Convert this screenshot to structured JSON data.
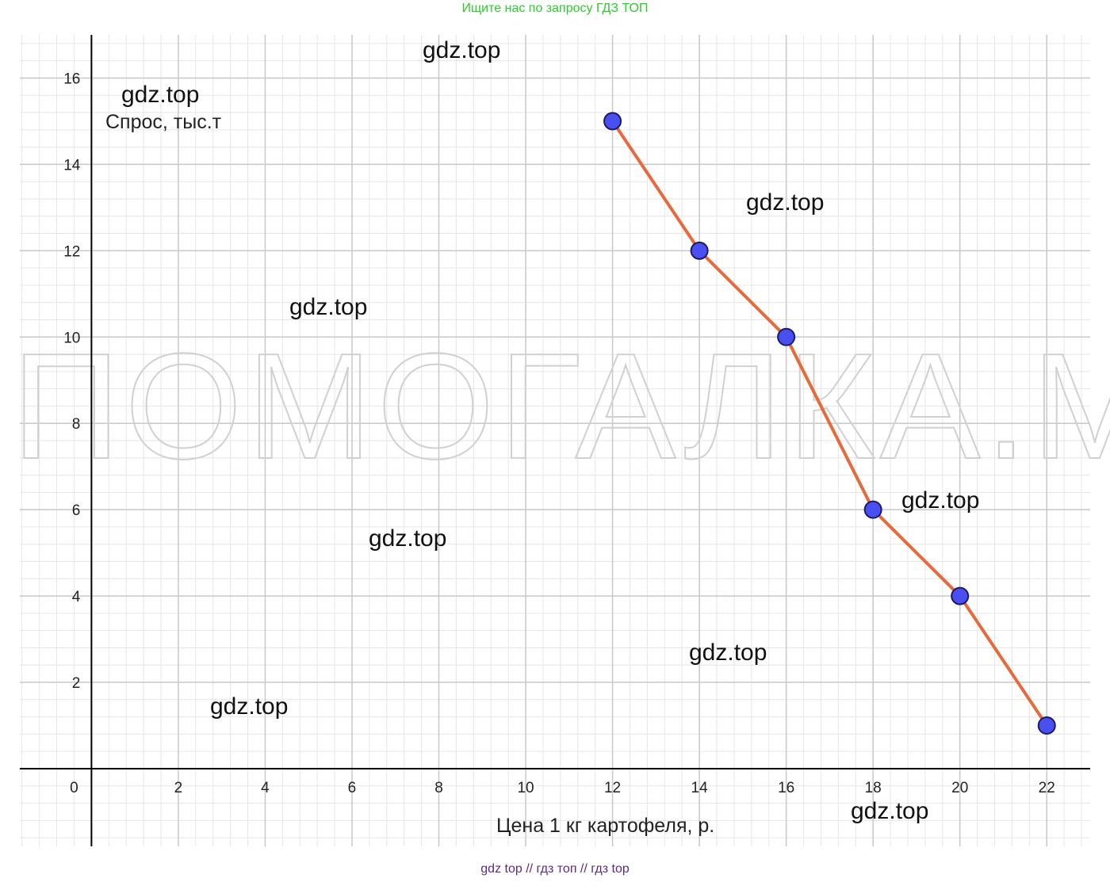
{
  "header_banner": "Ищите нас по запросу ГДЗ ТОП",
  "footer_banner": "gdz top  //  гдз топ  //  гдз top",
  "watermarks": {
    "small": "gdz.top",
    "large": "ПОМОГАЛКА.МИ"
  },
  "colors": {
    "line": "#e8693a",
    "point_fill": "#4a4ff0",
    "point_stroke": "#1a1a6a",
    "grid_major": "#c8c8c8",
    "grid_minor": "#e6e6e6",
    "axis": "#000000"
  },
  "chart_data": {
    "type": "line",
    "xlabel": "Цена 1 кг картофеля, р.",
    "ylabel": "Спрос, тыс.т",
    "x": [
      12,
      14,
      16,
      18,
      20,
      22
    ],
    "series": [
      {
        "values": [
          15,
          12,
          10,
          6,
          4,
          1
        ]
      }
    ],
    "xlim": [
      -1.65,
      23
    ],
    "ylim": [
      -1.8,
      17
    ],
    "x_ticks": [
      0,
      2,
      4,
      6,
      8,
      10,
      12,
      14,
      16,
      18,
      20,
      22
    ],
    "y_ticks": [
      2,
      4,
      6,
      8,
      10,
      12,
      14,
      16
    ],
    "grid": true,
    "markers": true
  }
}
